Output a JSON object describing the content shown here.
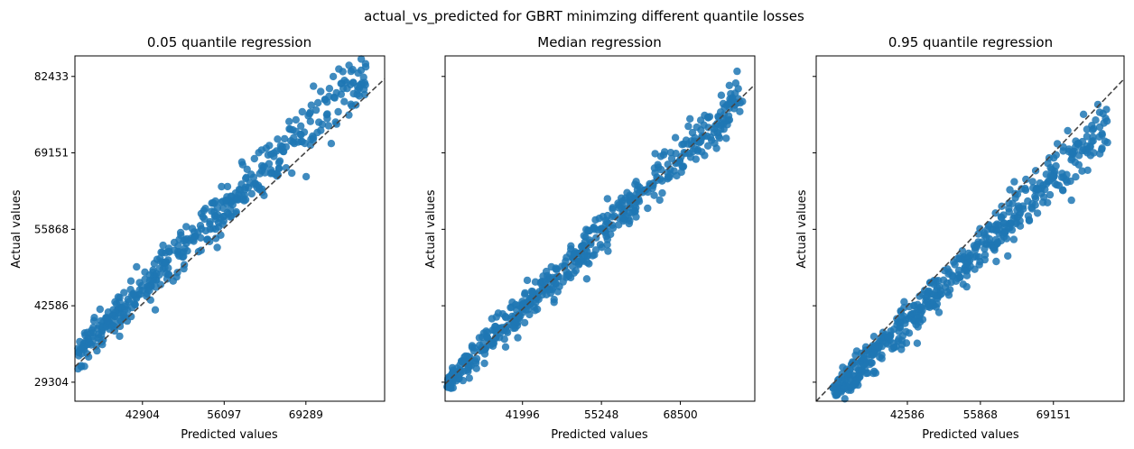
{
  "figure_title": "actual_vs_predicted for GBRT minimzing different quantile losses",
  "chart_data": [
    {
      "type": "scatter",
      "title": "0.05 quantile regression",
      "xlabel": "Predicted values",
      "ylabel": "Actual values",
      "xlim": [
        32000,
        82000
      ],
      "ylim": [
        26000,
        86000
      ],
      "xticks": [
        42904,
        56097,
        69289
      ],
      "yticks": [
        29304,
        42586,
        55868,
        69151,
        82433
      ],
      "show_yticklabels": true,
      "point_color": "#1f77b4",
      "reference_line": {
        "from": [
          20000,
          20000
        ],
        "to": [
          90000,
          90000
        ],
        "color": "#444444",
        "style": "dashed"
      },
      "bias": 0.06,
      "scatter_spread": 1800,
      "n_points": 520
    },
    {
      "type": "scatter",
      "title": "Median regression",
      "xlabel": "Predicted values",
      "ylabel": "Actual values",
      "xlim": [
        29000,
        81000
      ],
      "ylim": [
        26000,
        86000
      ],
      "xticks": [
        41996,
        55248,
        68500
      ],
      "yticks": [
        29304,
        42586,
        55868,
        69151,
        82433
      ],
      "show_yticklabels": false,
      "point_color": "#1f77b4",
      "reference_line": {
        "from": [
          20000,
          20000
        ],
        "to": [
          90000,
          90000
        ],
        "color": "#444444",
        "style": "dashed"
      },
      "bias": 0.0,
      "scatter_spread": 1700,
      "n_points": 520
    },
    {
      "type": "scatter",
      "title": "0.95 quantile regression",
      "xlabel": "Predicted values",
      "ylabel": "Actual values",
      "xlim": [
        26000,
        82000
      ],
      "ylim": [
        26000,
        86000
      ],
      "xticks": [
        42586,
        55868,
        69151
      ],
      "yticks": [
        29304,
        42586,
        55868,
        69151,
        82433
      ],
      "show_yticklabels": false,
      "point_color": "#1f77b4",
      "reference_line": {
        "from": [
          20000,
          20000
        ],
        "to": [
          90000,
          90000
        ],
        "color": "#444444",
        "style": "dashed"
      },
      "bias": -0.06,
      "scatter_spread": 1800,
      "n_points": 520
    }
  ]
}
